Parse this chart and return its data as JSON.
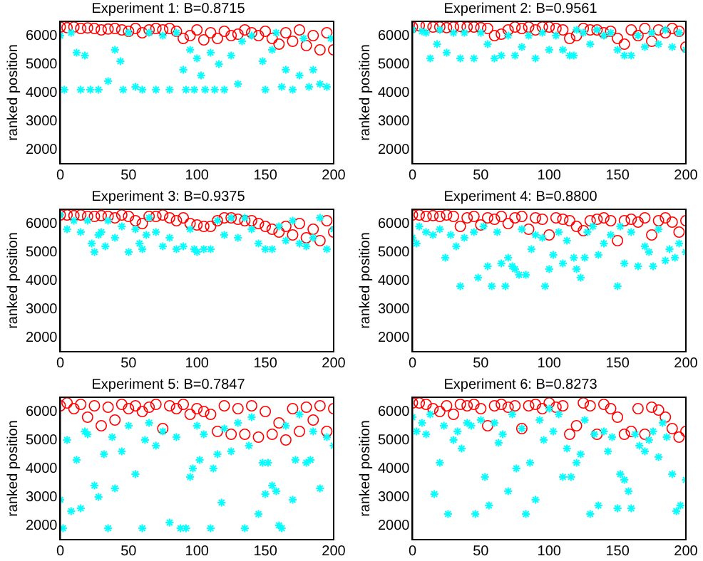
{
  "chart_data": [
    {
      "type": "scatter",
      "title": "Experiment 1: B=0.8715",
      "ylabel": "ranked position",
      "xlim": [
        0,
        200
      ],
      "xticks": [
        0,
        50,
        100,
        150,
        200
      ],
      "ylim": [
        1500,
        6500
      ],
      "yticks": [
        2000,
        3000,
        4000,
        5000,
        6000
      ],
      "series": [
        {
          "color": "#ff0000",
          "marker": "circle",
          "x": [
            0,
            5,
            10,
            15,
            20,
            25,
            30,
            35,
            40,
            45,
            50,
            55,
            60,
            65,
            70,
            75,
            80,
            85,
            90,
            95,
            100,
            105,
            110,
            115,
            120,
            125,
            130,
            135,
            140,
            145,
            150,
            155,
            160,
            165,
            170,
            175,
            180,
            185,
            190,
            195,
            200
          ],
          "values": [
            6300,
            6280,
            6300,
            6250,
            6270,
            6250,
            6200,
            6230,
            6250,
            6200,
            6150,
            6250,
            6100,
            6200,
            6250,
            6200,
            6250,
            6150,
            5900,
            6000,
            6200,
            5850,
            6100,
            5900,
            6150,
            6000,
            6050,
            6200,
            6100,
            6000,
            6150,
            5900,
            5700,
            6100,
            5800,
            6200,
            5650,
            6000,
            5500,
            6100,
            5500
          ]
        },
        {
          "color": "#00ffff",
          "marker": "cross",
          "x": [
            0,
            3,
            8,
            12,
            15,
            18,
            22,
            28,
            35,
            40,
            44,
            46,
            50,
            55,
            60,
            65,
            70,
            75,
            80,
            85,
            90,
            92,
            95,
            98,
            100,
            103,
            106,
            110,
            113,
            116,
            120,
            125,
            130,
            133,
            140,
            148,
            150,
            155,
            158,
            162,
            165,
            170,
            175,
            178,
            182,
            185,
            190,
            195,
            198
          ],
          "values": [
            6000,
            4100,
            6100,
            5400,
            4100,
            5300,
            4100,
            4100,
            4400,
            5500,
            5100,
            4100,
            6100,
            4200,
            4100,
            6100,
            4100,
            6000,
            4100,
            6100,
            4800,
            4100,
            5500,
            4100,
            5200,
            4600,
            4100,
            5400,
            4100,
            5000,
            4100,
            5300,
            4300,
            5800,
            6000,
            5100,
            4100,
            5500,
            6100,
            4200,
            4800,
            4100,
            4600,
            5900,
            4200,
            4800,
            4300,
            4200,
            5900
          ]
        }
      ]
    },
    {
      "type": "scatter",
      "title": "Experiment 2: B=0.9561",
      "ylabel": "ranked position",
      "xlim": [
        0,
        200
      ],
      "xticks": [
        0,
        50,
        100,
        150,
        200
      ],
      "ylim": [
        1500,
        6500
      ],
      "yticks": [
        2000,
        3000,
        4000,
        5000,
        6000
      ],
      "series": [
        {
          "color": "#ff0000",
          "marker": "circle",
          "x": [
            0,
            5,
            10,
            15,
            20,
            25,
            30,
            35,
            40,
            45,
            50,
            55,
            60,
            65,
            70,
            75,
            80,
            85,
            90,
            95,
            100,
            105,
            110,
            115,
            120,
            125,
            130,
            135,
            140,
            145,
            150,
            155,
            160,
            165,
            170,
            175,
            180,
            185,
            190,
            195,
            200
          ],
          "values": [
            6300,
            6350,
            6350,
            6300,
            6300,
            6280,
            6300,
            6320,
            6300,
            6300,
            6280,
            6250,
            6000,
            6050,
            6200,
            6300,
            6250,
            6300,
            6200,
            6300,
            6300,
            6250,
            6200,
            5900,
            6000,
            6250,
            6200,
            6200,
            6100,
            6150,
            5900,
            5700,
            6200,
            6000,
            6250,
            5800,
            6200,
            6100,
            6250,
            6150,
            5600
          ]
        },
        {
          "color": "#00ffff",
          "marker": "cross",
          "x": [
            0,
            7,
            10,
            13,
            18,
            20,
            25,
            30,
            35,
            38,
            45,
            50,
            55,
            60,
            65,
            70,
            75,
            80,
            85,
            90,
            95,
            100,
            105,
            110,
            115,
            118,
            120,
            125,
            130,
            135,
            140,
            145,
            150,
            155,
            160,
            165,
            170,
            175,
            180,
            185,
            190,
            195,
            200
          ],
          "values": [
            6200,
            6150,
            6100,
            5200,
            5700,
            6200,
            5400,
            6100,
            5200,
            6100,
            5200,
            6100,
            5700,
            5200,
            5300,
            6000,
            5300,
            5600,
            6000,
            5200,
            6100,
            5500,
            6000,
            5500,
            5300,
            5300,
            6200,
            6100,
            5700,
            6200,
            6000,
            6100,
            5500,
            5300,
            5300,
            6000,
            5600,
            6100,
            5700,
            6200,
            5600,
            6100,
            5500
          ]
        }
      ]
    },
    {
      "type": "scatter",
      "title": "Experiment 3: B=0.9375",
      "ylabel": "ranked position",
      "xlim": [
        0,
        200
      ],
      "xticks": [
        0,
        50,
        100,
        150,
        200
      ],
      "ylim": [
        1500,
        6500
      ],
      "yticks": [
        2000,
        3000,
        4000,
        5000,
        6000
      ],
      "series": [
        {
          "color": "#ff0000",
          "marker": "circle",
          "x": [
            0,
            5,
            10,
            15,
            20,
            25,
            30,
            35,
            40,
            45,
            50,
            55,
            60,
            65,
            70,
            75,
            80,
            85,
            90,
            95,
            100,
            105,
            110,
            115,
            120,
            125,
            130,
            135,
            140,
            145,
            150,
            155,
            160,
            165,
            170,
            175,
            180,
            185,
            190,
            195,
            200
          ],
          "values": [
            6300,
            6300,
            6280,
            6300,
            6250,
            6250,
            6280,
            6250,
            6200,
            6300,
            6250,
            6100,
            6000,
            6250,
            6250,
            6300,
            6200,
            6100,
            6200,
            6000,
            5950,
            5900,
            5900,
            6100,
            6200,
            6200,
            6150,
            6100,
            6100,
            6000,
            5900,
            5800,
            5700,
            5900,
            5600,
            6000,
            5500,
            5800,
            5400,
            6100,
            5700
          ]
        },
        {
          "color": "#00ffff",
          "marker": "cross",
          "x": [
            0,
            5,
            10,
            15,
            20,
            23,
            25,
            28,
            30,
            33,
            35,
            40,
            45,
            50,
            55,
            58,
            60,
            63,
            65,
            70,
            75,
            80,
            85,
            90,
            95,
            98,
            100,
            105,
            110,
            115,
            120,
            125,
            130,
            135,
            140,
            145,
            150,
            155,
            160,
            165,
            170,
            175,
            180,
            185,
            190,
            195,
            200
          ],
          "values": [
            6300,
            5800,
            6100,
            5700,
            6100,
            5300,
            5000,
            5600,
            5700,
            5200,
            6100,
            5500,
            5900,
            5000,
            5800,
            5300,
            5100,
            5600,
            6200,
            5700,
            5200,
            5500,
            5100,
            5200,
            5800,
            5100,
            5000,
            5100,
            5100,
            6100,
            5600,
            6200,
            5500,
            6200,
            5800,
            5300,
            5100,
            5100,
            5900,
            5400,
            6100,
            5300,
            5200,
            5500,
            6200,
            5100,
            5800
          ]
        }
      ]
    },
    {
      "type": "scatter",
      "title": "Experiment 4: B=0.8800",
      "ylabel": "ranked position",
      "xlim": [
        0,
        200
      ],
      "xticks": [
        0,
        50,
        100,
        150,
        200
      ],
      "ylim": [
        1500,
        6500
      ],
      "yticks": [
        2000,
        3000,
        4000,
        5000,
        6000
      ],
      "series": [
        {
          "color": "#ff0000",
          "marker": "circle",
          "x": [
            0,
            5,
            10,
            15,
            20,
            25,
            30,
            35,
            40,
            45,
            50,
            55,
            60,
            65,
            70,
            75,
            80,
            85,
            90,
            95,
            100,
            105,
            110,
            115,
            120,
            125,
            130,
            135,
            140,
            145,
            150,
            155,
            160,
            165,
            170,
            175,
            180,
            185,
            190,
            195,
            200
          ],
          "values": [
            6300,
            6300,
            6250,
            6280,
            6250,
            6300,
            6250,
            5900,
            6200,
            6250,
            5950,
            6200,
            6150,
            6250,
            6000,
            6200,
            6250,
            5800,
            6200,
            6150,
            5600,
            6200,
            6150,
            6100,
            5900,
            5750,
            6100,
            6150,
            6200,
            6100,
            5400,
            6100,
            6150,
            6050,
            6200,
            5600,
            6100,
            6200,
            6050,
            5700,
            6100
          ]
        },
        {
          "color": "#00ffff",
          "marker": "cross",
          "x": [
            0,
            3,
            5,
            10,
            15,
            20,
            24,
            28,
            32,
            35,
            38,
            45,
            48,
            52,
            55,
            58,
            62,
            65,
            68,
            70,
            73,
            75,
            78,
            80,
            83,
            87,
            90,
            95,
            97,
            100,
            103,
            107,
            110,
            113,
            118,
            120,
            123,
            126,
            128,
            132,
            136,
            140,
            145,
            150,
            152,
            155,
            160,
            165,
            170,
            173,
            176,
            180,
            185,
            188,
            192,
            195,
            200
          ],
          "values": [
            5500,
            5300,
            5900,
            5700,
            5600,
            5800,
            4800,
            5600,
            5200,
            3800,
            5500,
            5700,
            4100,
            5900,
            4500,
            3800,
            5700,
            4600,
            3800,
            4800,
            4500,
            4400,
            4200,
            5800,
            4200,
            5100,
            5600,
            5500,
            3800,
            4400,
            4900,
            5700,
            4600,
            5400,
            4800,
            4400,
            4100,
            4800,
            5700,
            5900,
            4900,
            5300,
            5600,
            3800,
            5900,
            4600,
            5700,
            4500,
            5200,
            5000,
            4500,
            5800,
            4700,
            5100,
            4800,
            5300,
            5000
          ]
        }
      ]
    },
    {
      "type": "scatter",
      "title": "Experiment 5: B=0.7847",
      "ylabel": "ranked position",
      "xlim": [
        0,
        200
      ],
      "xticks": [
        0,
        50,
        100,
        150,
        200
      ],
      "ylim": [
        1500,
        6500
      ],
      "yticks": [
        2000,
        3000,
        4000,
        5000,
        6000
      ],
      "series": [
        {
          "color": "#ff0000",
          "marker": "circle",
          "x": [
            0,
            5,
            10,
            15,
            20,
            25,
            30,
            35,
            40,
            45,
            50,
            55,
            60,
            65,
            70,
            75,
            80,
            85,
            90,
            95,
            100,
            105,
            110,
            115,
            120,
            125,
            130,
            135,
            140,
            145,
            150,
            155,
            160,
            165,
            170,
            175,
            180,
            185,
            190,
            195,
            200
          ],
          "values": [
            6200,
            6300,
            6100,
            6250,
            5800,
            6200,
            5500,
            6150,
            5700,
            6250,
            6100,
            6200,
            6000,
            6150,
            6250,
            5400,
            6200,
            6100,
            6250,
            5900,
            6100,
            6000,
            5900,
            5300,
            6200,
            5200,
            6100,
            5200,
            6200,
            5100,
            6000,
            5200,
            5600,
            5000,
            6100,
            5300,
            6150,
            5700,
            6200,
            5300,
            6100
          ]
        },
        {
          "color": "#00ffff",
          "marker": "cross",
          "x": [
            0,
            2,
            5,
            8,
            12,
            15,
            18,
            20,
            25,
            28,
            32,
            35,
            38,
            40,
            45,
            50,
            55,
            60,
            62,
            65,
            70,
            75,
            80,
            85,
            88,
            92,
            95,
            97,
            100,
            102,
            105,
            110,
            112,
            115,
            118,
            120,
            125,
            130,
            135,
            138,
            140,
            145,
            148,
            150,
            152,
            155,
            158,
            160,
            162,
            165,
            170,
            172,
            175,
            180,
            183,
            185,
            190,
            195,
            200
          ],
          "values": [
            2900,
            1900,
            5000,
            2500,
            4300,
            2600,
            5300,
            5200,
            3400,
            3000,
            4500,
            1900,
            5100,
            3300,
            4600,
            5500,
            3800,
            1900,
            5000,
            5600,
            4800,
            5300,
            2100,
            5100,
            1900,
            1900,
            3700,
            4000,
            5500,
            4300,
            5200,
            1900,
            4000,
            4500,
            2800,
            5400,
            4600,
            5600,
            1900,
            4800,
            5800,
            2400,
            4200,
            3100,
            4200,
            3400,
            3200,
            2000,
            1900,
            5500,
            2900,
            4300,
            5900,
            4200,
            4300,
            5300,
            3300,
            5100,
            4800
          ]
        }
      ]
    },
    {
      "type": "scatter",
      "title": "Experiment 6: B=0.8273",
      "ylabel": "ranked position",
      "xlim": [
        0,
        200
      ],
      "xticks": [
        0,
        50,
        100,
        150,
        200
      ],
      "ylim": [
        1500,
        6500
      ],
      "yticks": [
        2000,
        3000,
        4000,
        5000,
        6000
      ],
      "series": [
        {
          "color": "#ff0000",
          "marker": "circle",
          "x": [
            0,
            5,
            10,
            15,
            20,
            25,
            30,
            35,
            40,
            45,
            50,
            55,
            60,
            65,
            70,
            75,
            80,
            85,
            90,
            95,
            100,
            105,
            110,
            115,
            120,
            125,
            130,
            135,
            140,
            145,
            150,
            155,
            160,
            165,
            170,
            175,
            180,
            185,
            190,
            195,
            200
          ],
          "values": [
            6300,
            6300,
            6250,
            6100,
            6000,
            6200,
            5900,
            6250,
            6200,
            6250,
            6100,
            5500,
            6200,
            6250,
            6150,
            6200,
            5400,
            6200,
            6250,
            6100,
            6300,
            6150,
            6200,
            5200,
            5500,
            6300,
            6200,
            5200,
            6250,
            6100,
            5800,
            5200,
            5300,
            6100,
            5200,
            6150,
            6050,
            5800,
            5400,
            5100,
            5300
          ]
        },
        {
          "color": "#00ffff",
          "marker": "cross",
          "x": [
            0,
            3,
            7,
            10,
            13,
            16,
            20,
            23,
            26,
            30,
            33,
            36,
            40,
            43,
            46,
            50,
            53,
            56,
            60,
            63,
            66,
            70,
            73,
            76,
            80,
            83,
            86,
            90,
            93,
            96,
            100,
            103,
            107,
            110,
            113,
            116,
            120,
            123,
            126,
            130,
            133,
            136,
            140,
            143,
            146,
            150,
            152,
            155,
            158,
            160,
            163,
            166,
            170,
            173,
            176,
            180,
            183,
            186,
            190,
            193,
            196,
            200
          ],
          "values": [
            5800,
            5300,
            5600,
            5200,
            5900,
            3100,
            4200,
            5500,
            2400,
            5000,
            5300,
            4700,
            5600,
            5500,
            2400,
            5700,
            3700,
            2700,
            5600,
            4900,
            5200,
            3200,
            5900,
            4000,
            5400,
            2400,
            4200,
            2900,
            5700,
            5000,
            6100,
            5300,
            5900,
            3700,
            4700,
            3700,
            4200,
            4500,
            5700,
            2400,
            5200,
            2700,
            5300,
            4600,
            5100,
            2600,
            3800,
            3600,
            3200,
            2600,
            5200,
            4800,
            4600,
            5000,
            5300,
            4400,
            5600,
            5100,
            3800,
            2500,
            2700,
            3600
          ]
        }
      ]
    }
  ]
}
